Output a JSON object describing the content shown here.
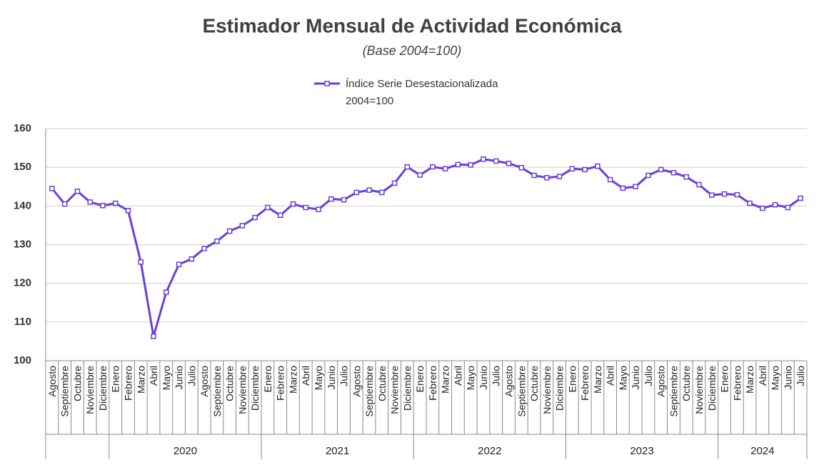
{
  "chart_data": {
    "type": "line",
    "title": "Estimador Mensual de Actividad Económica",
    "subtitle": "(Base 2004=100)",
    "groups": [
      {
        "label": null,
        "months": [
          "Agosto",
          "Septiembre",
          "Octubre",
          "Noviembre",
          "Diciembre"
        ]
      },
      {
        "label": "2020",
        "months": [
          "Enero",
          "Febrero",
          "Marzo",
          "Abril",
          "Mayo",
          "Junio",
          "Julio",
          "Agosto",
          "Septiembre",
          "Octubre",
          "Noviembre",
          "Diciembre"
        ]
      },
      {
        "label": "2021",
        "months": [
          "Enero",
          "Febrero",
          "Marzo",
          "Abril",
          "Mayo",
          "Junio",
          "Julio",
          "Agosto",
          "Septiembre",
          "Octubre",
          "Noviembre",
          "Diciembre"
        ]
      },
      {
        "label": "2022",
        "months": [
          "Enero",
          "Febrero",
          "Marzo",
          "Abril",
          "Mayo",
          "Junio",
          "Julio",
          "Agosto",
          "Septiembre",
          "Octubre",
          "Noviembre",
          "Diciembre"
        ]
      },
      {
        "label": "2023",
        "months": [
          "Enero",
          "Febrero",
          "Marzo",
          "Abril",
          "Mayo",
          "Junio",
          "Julio",
          "Agosto",
          "Septiembre",
          "Octubre",
          "Noviembre",
          "Diciembre"
        ]
      },
      {
        "label": "2024",
        "months": [
          "Enero",
          "Febrero",
          "Marzo",
          "Abril",
          "Mayo",
          "Junio",
          "Julio"
        ]
      }
    ],
    "series": [
      {
        "name": "Índice Serie Desestacionalizada 2004=100",
        "color": "#6a3fd6",
        "values": [
          144.5,
          140.5,
          143.8,
          141,
          140.1,
          140.7,
          138.8,
          125.5,
          106.3,
          117.7,
          124.9,
          126.3,
          129,
          130.9,
          133.5,
          134.9,
          137,
          139.6,
          137.6,
          140.5,
          139.6,
          139.1,
          141.8,
          141.6,
          143.5,
          144.1,
          143.5,
          145.9,
          150.1,
          148,
          150.1,
          149.6,
          150.7,
          150.6,
          152.1,
          151.6,
          151,
          149.9,
          147.9,
          147.3,
          147.6,
          149.6,
          149.4,
          150.3,
          146.8,
          144.6,
          145,
          147.9,
          149.4,
          148.6,
          147.5,
          145.5,
          142.8,
          143.1,
          142.9,
          140.7,
          139.4,
          140.3,
          139.6,
          142
        ]
      }
    ],
    "ylim": [
      100,
      160
    ],
    "yticks": [
      100,
      110,
      120,
      130,
      140,
      150,
      160
    ],
    "grid": true,
    "legend": "top"
  }
}
